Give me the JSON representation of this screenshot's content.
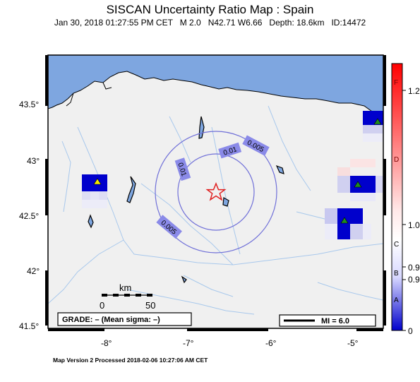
{
  "header": {
    "title": "SISCAN Uncertainty Ratio Map : Spain",
    "subtitle": "Jan 30, 2018 01:27:55 PM CET   M 2.0   N42.71 W6.66   Depth: 18.6km   ID:14472"
  },
  "footer": "Map Version 2 Processed 2018-02-06 10:27:06 AM CET",
  "axes": {
    "x_ticks": [
      "-8°",
      "-7°",
      "-6°",
      "-5°"
    ],
    "y_ticks": [
      "43.5°",
      "43°",
      "42.5°",
      "42°",
      "41.5°"
    ]
  },
  "contours": [
    "0.01",
    "0.005",
    "0.01",
    "0.005"
  ],
  "scale": {
    "unit": "km",
    "zero": "0",
    "fifty": "50"
  },
  "grade_box": "GRADE: – (Mean sigma: –)",
  "mi_legend": "MI = 6.0",
  "colorbar": {
    "top_value": "1.2",
    "bottom_value": "0",
    "value_labels": [
      "1.0",
      "0.9",
      "0.9"
    ],
    "grades": [
      "F",
      "D",
      "C",
      "B",
      "A"
    ],
    "colors": {
      "top": "#ff0000",
      "middle": "#ffffff",
      "bottom": "#0000cc"
    }
  },
  "colors": {
    "sea": "#7ea6e0",
    "land": "#f0f0f0",
    "river": "#a8c8ec",
    "contour": "#7070d8",
    "epicenter": "#e02020",
    "station_yellow": "#f5e800",
    "station_green": "#1f8a1f"
  },
  "icons": {
    "epicenter": "star-icon",
    "stations": "triangle-icon"
  }
}
